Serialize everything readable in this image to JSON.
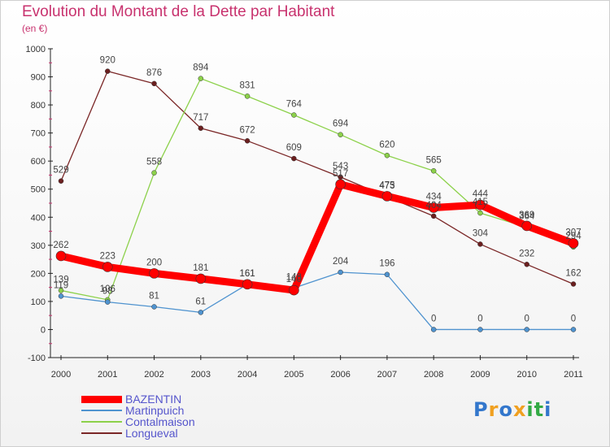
{
  "title": "Evolution du Montant de la Dette par Habitant",
  "unit_label": "(en €)",
  "brand": {
    "letters": [
      "P",
      "r",
      "o",
      "x",
      "i",
      "t",
      "i"
    ],
    "colors": [
      "#3377cc",
      "#f0a020",
      "#3377cc",
      "#f0a020",
      "#33aa44",
      "#33aa44",
      "#3377cc"
    ]
  },
  "chart_data": {
    "type": "line",
    "title": "Evolution du Montant de la Dette par Habitant",
    "ylabel": "(en €)",
    "x": [
      "2000",
      "2001",
      "2002",
      "2003",
      "2004",
      "2005",
      "2006",
      "2007",
      "2008",
      "2009",
      "2010",
      "2011"
    ],
    "ylim": [
      -100,
      1000
    ],
    "yticks": [
      "-100",
      "0",
      "100",
      "200",
      "300",
      "400",
      "500",
      "600",
      "700",
      "800",
      "900",
      "1000"
    ],
    "grid": false,
    "legend_position": "bottom-left",
    "series": [
      {
        "name": "BAZENTIN",
        "color": "#ff0000",
        "values": [
          262,
          223,
          200,
          181,
          161,
          140,
          517,
          475,
          434,
          444,
          369,
          307
        ]
      },
      {
        "name": "Martinpuich",
        "color": "#4f93cf",
        "values": [
          119,
          98,
          81,
          61,
          161,
          148,
          204,
          196,
          0,
          0,
          0,
          0
        ]
      },
      {
        "name": "Contalmaison",
        "color": "#8cd14a",
        "values": [
          139,
          106,
          558,
          894,
          831,
          764,
          694,
          620,
          565,
          415,
          364,
          294
        ]
      },
      {
        "name": "Longueval",
        "color": "#7a2626",
        "values": [
          529,
          920,
          876,
          717,
          672,
          609,
          543,
          473,
          404,
          304,
          232,
          162
        ]
      }
    ]
  }
}
